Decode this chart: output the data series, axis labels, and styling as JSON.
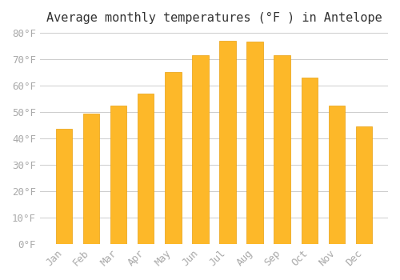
{
  "title": "Average monthly temperatures (°F ) in Antelope",
  "months": [
    "Jan",
    "Feb",
    "Mar",
    "Apr",
    "May",
    "Jun",
    "Jul",
    "Aug",
    "Sep",
    "Oct",
    "Nov",
    "Dec"
  ],
  "values": [
    43.5,
    49.5,
    52.5,
    57,
    65,
    71.5,
    77,
    76.5,
    71.5,
    63,
    52.5,
    44.5
  ],
  "bar_color": "#FDB829",
  "bar_edge_color": "#E8A010",
  "background_color": "#FFFFFF",
  "grid_color": "#CCCCCC",
  "text_color": "#AAAAAA",
  "ylim": [
    0,
    80
  ],
  "yticks": [
    0,
    10,
    20,
    30,
    40,
    50,
    60,
    70,
    80
  ],
  "title_fontsize": 11,
  "tick_fontsize": 9
}
